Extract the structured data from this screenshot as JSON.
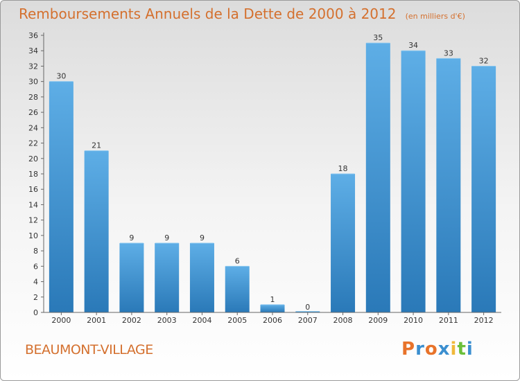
{
  "chart_data": {
    "type": "bar",
    "title": "Remboursements Annuels de la Dette de 2000 à 2012",
    "unit": "(en milliers d'€)",
    "categories": [
      "2000",
      "2001",
      "2002",
      "2003",
      "2004",
      "2005",
      "2006",
      "2007",
      "2008",
      "2009",
      "2010",
      "2011",
      "2012"
    ],
    "values": [
      30,
      21,
      9,
      9,
      9,
      6,
      1,
      0,
      18,
      35,
      34,
      33,
      32
    ],
    "ylim": [
      0,
      36
    ],
    "ytick_step": 2,
    "grid": false,
    "bar_color_top": "#5eaee6",
    "bar_color_bottom": "#2a79b8"
  },
  "commune": "BEAUMONT-VILLAGE",
  "logo": {
    "letters": [
      "P",
      "r",
      "o",
      "x",
      "i",
      "t",
      "i"
    ],
    "colors": [
      "#e8732a",
      "#3b8fd0",
      "#e8732a",
      "#3b8fd0",
      "#f0b83a",
      "#6bbf3a",
      "#3b8fd0"
    ]
  },
  "theme": {
    "accent": "#d4702e"
  }
}
